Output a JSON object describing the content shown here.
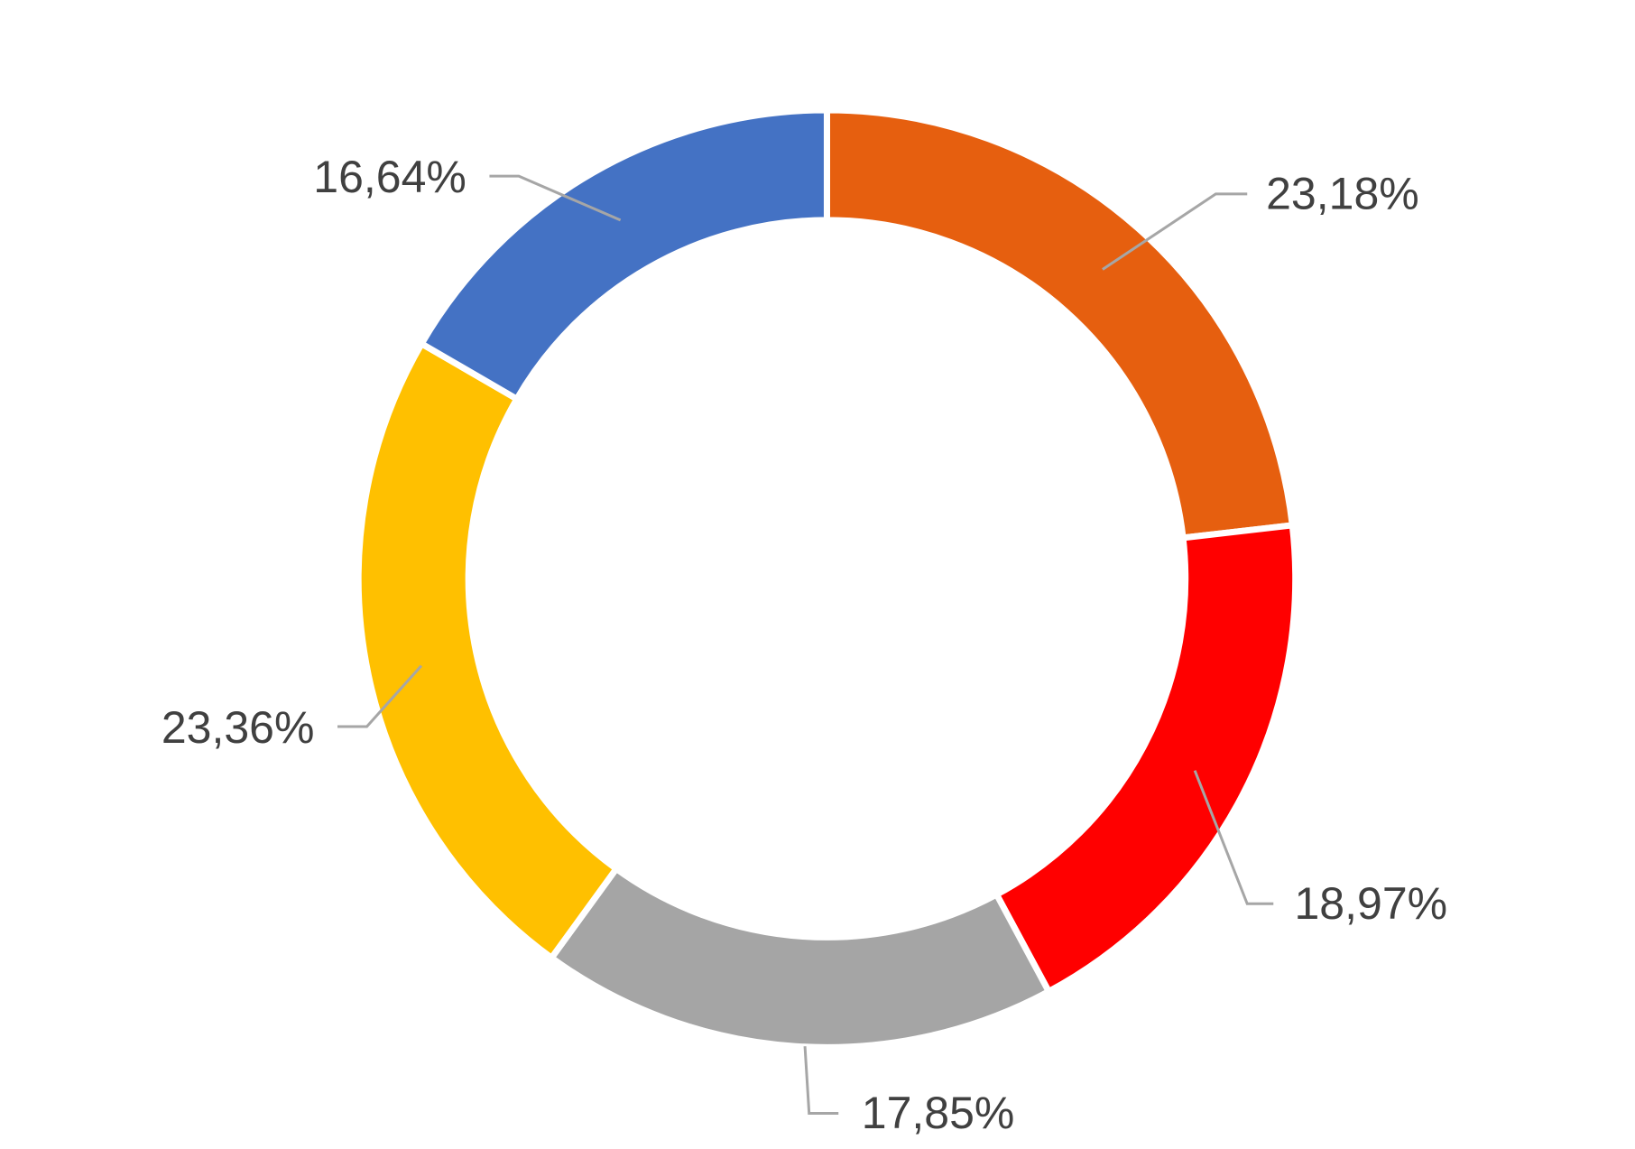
{
  "chart_data": {
    "type": "donut",
    "values": [
      23.18,
      18.97,
      17.85,
      23.36,
      16.64
    ],
    "value_labels": [
      "23,18%",
      "18,97%",
      "17,85%",
      "23,36%",
      "16,64%"
    ],
    "colors": [
      "#e65f0f",
      "#ff0000",
      "#a5a5a5",
      "#ffc000",
      "#4472c4"
    ]
  }
}
